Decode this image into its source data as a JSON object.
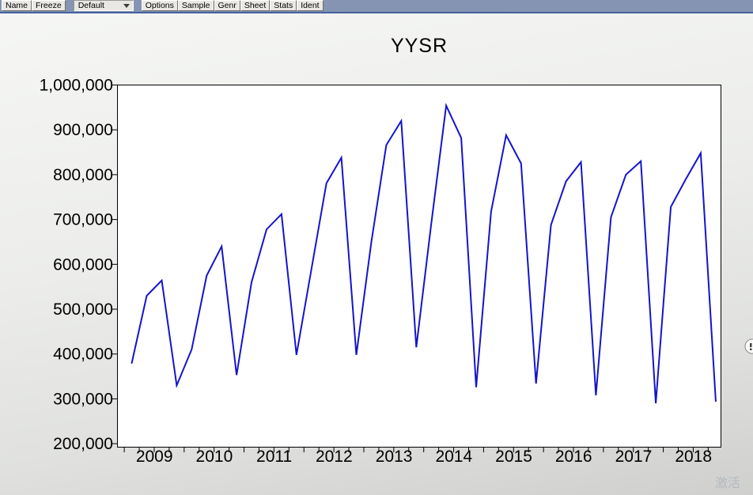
{
  "toolbar": {
    "name_label": "Name",
    "freeze_label": "Freeze",
    "dropdown_value": "Default",
    "options_label": "Options",
    "sample_label": "Sample",
    "genr_label": "Genr",
    "sheet_label": "Sheet",
    "stats_label": "Stats",
    "ident_label": "Ident"
  },
  "watermark_text": "激活",
  "chart_data": {
    "type": "line",
    "title": "YYSR",
    "frequency": "quarterly",
    "x_range": [
      "2009Q1",
      "2018Q4"
    ],
    "categories": [
      "2009",
      "2010",
      "2011",
      "2012",
      "2013",
      "2014",
      "2015",
      "2016",
      "2017",
      "2018"
    ],
    "ytick_labels": [
      "1,000,000",
      "900,000",
      "800,000",
      "700,000",
      "600,000",
      "500,000",
      "400,000",
      "300,000",
      "200,000"
    ],
    "ylim": [
      200000,
      1000000
    ],
    "ytick_step": 100000,
    "grid": false,
    "legend": "none",
    "line_color": "#1414cc",
    "series": [
      {
        "name": "YYSR",
        "values": [
          380000,
          530000,
          564000,
          330000,
          410000,
          575000,
          640000,
          353000,
          560000,
          678000,
          712000,
          398000,
          590000,
          781000,
          838000,
          398000,
          650000,
          866000,
          920000,
          415000,
          690000,
          954000,
          882000,
          326000,
          718000,
          888000,
          825000,
          334000,
          688000,
          785000,
          828000,
          308000,
          705000,
          800000,
          830000,
          290000,
          728000,
          790000,
          848000,
          295000
        ]
      }
    ]
  }
}
